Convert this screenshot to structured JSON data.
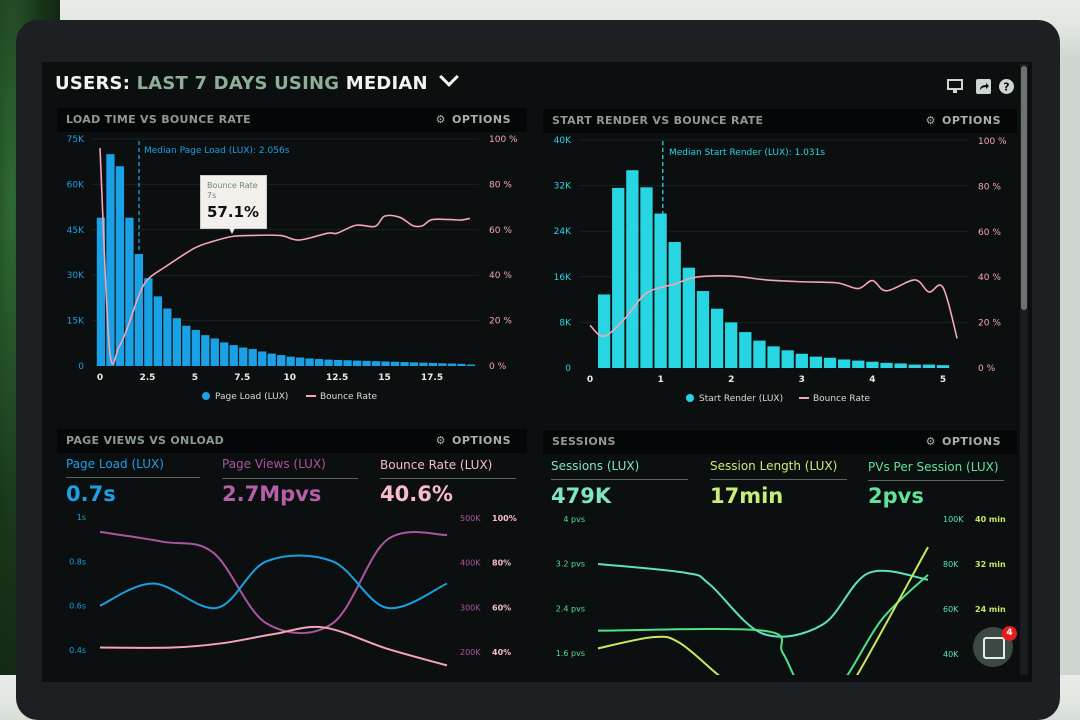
{
  "header": {
    "title_parts": [
      "USERS:",
      "LAST 7 DAYS",
      "USING",
      "MEDIAN"
    ],
    "icons": [
      "monitor-icon",
      "share-icon",
      "help-icon"
    ]
  },
  "options_label": "OPTIONS",
  "panels": [
    {
      "title": "LOAD TIME VS BOUNCE RATE"
    },
    {
      "title": "START RENDER VS BOUNCE RATE"
    },
    {
      "title": "PAGE VIEWS VS ONLOAD",
      "metrics": [
        {
          "label": "Page Load (LUX)",
          "value": "0.7s",
          "color": "#1ea0e6"
        },
        {
          "label": "Page Views (LUX)",
          "value": "2.7Mpvs",
          "color": "#b45fa8"
        },
        {
          "label": "Bounce Rate (LUX)",
          "value": "40.6%",
          "color": "#f8bccb"
        }
      ]
    },
    {
      "title": "SESSIONS",
      "metrics": [
        {
          "label": "Sessions (LUX)",
          "value": "479K",
          "color": "#7fe6c4"
        },
        {
          "label": "Session Length (LUX)",
          "value": "17min",
          "color": "#c9ec7a"
        },
        {
          "label": "PVs Per Session (LUX)",
          "value": "2pvs",
          "color": "#5fe39a"
        }
      ]
    }
  ],
  "chat": {
    "badge_count": "4"
  },
  "colors": {
    "blue": "#1aa0e4",
    "cyan": "#27d6e2",
    "pink": "#f4a6b6",
    "purple": "#a9569c",
    "teal": "#5fe0c4",
    "lime": "#c8e860",
    "green": "#4fe08c"
  },
  "chart_data": [
    {
      "type": "bar",
      "title": "LOAD TIME VS BOUNCE RATE",
      "x_ticks": [
        "0",
        "2.5",
        "5",
        "7.5",
        "10",
        "12.5",
        "15",
        "17.5"
      ],
      "x_tick_values": [
        0,
        2.5,
        5,
        7.5,
        10,
        12.5,
        15,
        17.5
      ],
      "y_ticks": [
        "0",
        "15K",
        "30K",
        "45K",
        "60K",
        "75K"
      ],
      "y_tick_values": [
        0,
        15,
        30,
        45,
        60,
        75
      ],
      "y2_ticks": [
        "0 %",
        "20 %",
        "40 %",
        "60 %",
        "80 %",
        "100 %"
      ],
      "y2_tick_values": [
        0,
        20,
        40,
        60,
        80,
        100
      ],
      "ylim": [
        0,
        75
      ],
      "y2lim": [
        0,
        100
      ],
      "bin_width": 0.5,
      "series": [
        {
          "name": "Page Load (LUX)",
          "kind": "bar",
          "unit": "K users",
          "values": [
            49,
            70,
            66,
            49,
            37,
            29,
            23,
            19,
            15.8,
            13.3,
            11.9,
            10.2,
            9.1,
            7.8,
            6.9,
            6.1,
            5.6,
            4.8,
            4.1,
            3.6,
            3.1,
            2.8,
            2.5,
            2.3,
            2.1,
            2,
            1.9,
            1.8,
            1.7,
            1.6,
            1.5,
            1.4,
            1.3,
            1.2,
            1.1,
            1,
            0.9,
            0.8,
            0.7,
            0.5
          ]
        },
        {
          "name": "Bounce Rate",
          "kind": "line",
          "unit": "%",
          "x": [
            0,
            0.5,
            1,
            1.5,
            2,
            2.5,
            3.5,
            5,
            6,
            7,
            8,
            9.5,
            10.5,
            12,
            12.5,
            13.5,
            14.5,
            15,
            15.8,
            16.5,
            17,
            17.5,
            18.5,
            19,
            19.5
          ],
          "y": [
            96,
            7.5,
            8.5,
            18,
            30,
            38,
            44,
            52,
            55,
            57.1,
            57.5,
            57.5,
            55.5,
            58.5,
            58.5,
            62,
            61.5,
            66,
            65.5,
            61.8,
            61.8,
            64.5,
            64.5,
            64.3,
            65
          ]
        }
      ],
      "median": {
        "value": 2.056,
        "label": "Median Page Load (LUX): 2.056s"
      },
      "tooltip": {
        "series": "Bounce Rate",
        "x_label": "7s",
        "value": "57.1%"
      },
      "legend": [
        "Page Load (LUX)",
        "Bounce Rate"
      ],
      "legend_position": "bottom"
    },
    {
      "type": "bar",
      "title": "START RENDER VS BOUNCE RATE",
      "x_ticks": [
        "0",
        "1",
        "2",
        "3",
        "4",
        "5"
      ],
      "x_tick_values": [
        0,
        1,
        2,
        3,
        4,
        5
      ],
      "y_ticks": [
        "0",
        "8K",
        "16K",
        "24K",
        "32K",
        "40K"
      ],
      "y_tick_values": [
        0,
        8,
        16,
        24,
        32,
        40
      ],
      "y2_ticks": [
        "0 %",
        "20 %",
        "40 %",
        "60 %",
        "80 %",
        "100 %"
      ],
      "y2_tick_values": [
        0,
        20,
        40,
        60,
        80,
        100
      ],
      "ylim": [
        0,
        40
      ],
      "y2lim": [
        0,
        100
      ],
      "bin_width": 0.2,
      "series": [
        {
          "name": "Start Render (LUX)",
          "kind": "bar",
          "unit": "K users",
          "values": [
            12.9,
            31.6,
            34.7,
            31.7,
            27.1,
            22.1,
            17.6,
            13.5,
            10.4,
            8,
            6.3,
            4.8,
            3.8,
            3.1,
            2.5,
            2,
            1.8,
            1.5,
            1.3,
            1.1,
            0.9,
            0.8,
            0.6,
            0.6,
            0.5
          ]
        },
        {
          "name": "Bounce Rate",
          "kind": "line",
          "unit": "%",
          "x": [
            0,
            0.2,
            0.5,
            0.8,
            1.2,
            1.5,
            2,
            2.5,
            3,
            3.5,
            3.8,
            4,
            4.2,
            4.6,
            4.8,
            5,
            5.2
          ],
          "y": [
            18.8,
            14,
            22,
            33,
            37,
            40,
            40.5,
            38.8,
            38,
            37.5,
            35,
            38.5,
            34,
            38.8,
            33.5,
            35.5,
            13
          ]
        }
      ],
      "median": {
        "value": 1.031,
        "label": "Median Start Render (LUX): 1.031s"
      },
      "legend": [
        "Start Render (LUX)",
        "Bounce Rate"
      ],
      "legend_position": "bottom"
    },
    {
      "type": "line",
      "title": "PAGE VIEWS VS ONLOAD",
      "y_ticks": [
        "1s",
        "0.8s",
        "0.6s",
        "0.4s"
      ],
      "y_tick_values": [
        1,
        0.8,
        0.6,
        0.4
      ],
      "y2_ticks": [
        "500K",
        "400K",
        "300K",
        "200K"
      ],
      "y2_tick_values": [
        500,
        400,
        300,
        200
      ],
      "y3_ticks": [
        "100%",
        "80%",
        "60%",
        "40%"
      ],
      "y3_tick_values": [
        100,
        80,
        60,
        40
      ],
      "series": [
        {
          "name": "Page Views (LUX)",
          "axis": "y2",
          "x": [
            0,
            18,
            32.7,
            48,
            67,
            82.7,
            100
          ],
          "y": [
            469,
            447,
            422,
            264,
            264,
            451,
            462
          ]
        },
        {
          "name": "Page Load (LUX)",
          "axis": "y",
          "x": [
            0,
            15.4,
            33.7,
            48,
            67,
            82.7,
            100
          ],
          "y": [
            0.6,
            0.7,
            0.59,
            0.8,
            0.8,
            0.59,
            0.7
          ]
        },
        {
          "name": "Bounce Rate (LUX)",
          "axis": "y3",
          "x": [
            0,
            21,
            35.6,
            50,
            64.4,
            82.7,
            100
          ],
          "y": [
            42,
            42,
            44,
            48,
            51,
            41.5,
            34
          ]
        }
      ]
    },
    {
      "type": "line",
      "title": "SESSIONS",
      "y_ticks": [
        "4 pvs",
        "3.2 pvs",
        "2.4 pvs",
        "1.6 pvs"
      ],
      "y_tick_values": [
        4,
        3.2,
        2.4,
        1.6
      ],
      "y2_ticks": [
        "100K",
        "80K",
        "60K",
        "40K"
      ],
      "y2_tick_values": [
        100,
        80,
        60,
        40
      ],
      "y3_ticks": [
        "40 min",
        "32 min",
        "24 min"
      ],
      "y3_tick_values": [
        40,
        32,
        24
      ],
      "series": [
        {
          "name": "Sessions (LUX)",
          "axis": "y2",
          "x": [
            0,
            26.8,
            33.8,
            50,
            68,
            82,
            100
          ],
          "y": [
            80,
            76,
            71,
            49,
            53,
            76,
            73
          ]
        },
        {
          "name": "PVs Per Session (LUX)",
          "axis": "y",
          "x": [
            0,
            50,
            56,
            62,
            72.7,
            86,
            100
          ],
          "y": [
            2.0,
            2.0,
            1.6,
            1.0,
            1.0,
            2.2,
            3.0
          ]
        },
        {
          "name": "Session Length (LUX)",
          "axis": "y3",
          "x": [
            0,
            16.7,
            24.7,
            37,
            50,
            70,
            78.3,
            100
          ],
          "y": [
            17,
            19,
            18,
            12,
            6,
            5,
            12,
            35
          ]
        }
      ]
    }
  ]
}
